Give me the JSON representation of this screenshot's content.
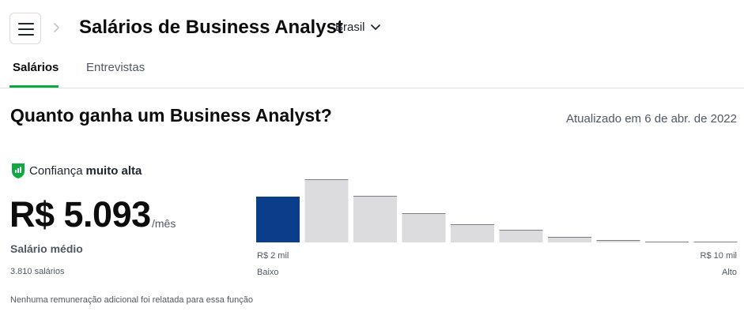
{
  "header": {
    "menu_icon": "hamburger-menu-icon",
    "breadcrumb_icon": "chevron-right-icon",
    "title": "Salários de Business Analyst",
    "country": "Brasil",
    "country_icon": "chevron-down-icon"
  },
  "tabs": [
    {
      "label": "Salários",
      "active": true
    },
    {
      "label": "Entrevistas",
      "active": false
    }
  ],
  "main": {
    "heading": "Quanto ganha um Business Analyst?",
    "updated": "Atualizado em 6 de abr. de 2022",
    "confidence_prefix": "Confiança",
    "confidence_level": "muito alta",
    "confidence_icon": "shield-chart-icon",
    "salary": "R$ 5.093",
    "per_month": "/mês",
    "avg_label": "Salário médio",
    "count": "3.810 salários",
    "note": "Nenhuma remuneração adicional foi relatada para essa função"
  },
  "colors": {
    "accent": "#0caa41",
    "highlight_bar": "#0b3e8a",
    "bar": "#dcdcdf"
  },
  "chart_data": {
    "type": "bar",
    "categories": [
      "1",
      "2",
      "3",
      "4",
      "5",
      "6",
      "7",
      "8",
      "9",
      "10"
    ],
    "values": [
      58,
      80,
      59,
      37,
      23,
      16,
      7,
      3,
      1,
      1
    ],
    "highlight_index": 0,
    "x_min_label": "R$ 2 mil",
    "x_max_label": "R$ 10 mil",
    "low_label": "Baixo",
    "high_label": "Alto"
  }
}
